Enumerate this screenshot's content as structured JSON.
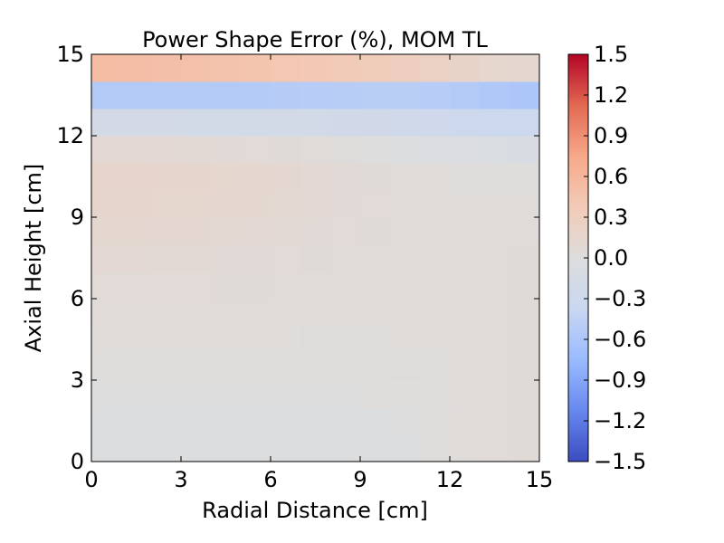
{
  "chart_data": {
    "type": "heatmap",
    "title": "Power Shape Error (%), MOM TL",
    "xlabel": "Radial Distance [cm]",
    "ylabel": "Axial Height [cm]",
    "xlim": [
      0,
      15
    ],
    "ylim": [
      0,
      15
    ],
    "x_ticks": [
      0,
      3,
      6,
      9,
      12,
      15
    ],
    "y_ticks": [
      0,
      3,
      6,
      9,
      12,
      15
    ],
    "x_tick_labels": [
      "0",
      "3",
      "6",
      "9",
      "12",
      "15"
    ],
    "y_tick_labels": [
      "0",
      "3",
      "6",
      "9",
      "12",
      "15"
    ],
    "x_edges": [
      0,
      1,
      2,
      3,
      4,
      5,
      6,
      7,
      8,
      9,
      10,
      11,
      12,
      13,
      14,
      15
    ],
    "y_edges": [
      0,
      1,
      2,
      3,
      4,
      5,
      6,
      7,
      8,
      9,
      10,
      11,
      12,
      13,
      14,
      15
    ],
    "values": [
      [
        -0.01,
        -0.01,
        -0.01,
        -0.01,
        -0.01,
        -0.01,
        -0.02,
        -0.01,
        -0.01,
        -0.01,
        -0.01,
        0.01,
        0.03,
        0.05,
        0.06
      ],
      [
        -0.01,
        -0.01,
        -0.01,
        -0.01,
        -0.01,
        -0.01,
        -0.01,
        -0.01,
        -0.01,
        -0.01,
        0.0,
        0.01,
        0.03,
        0.05,
        0.06
      ],
      [
        0.0,
        0.0,
        0.0,
        0.0,
        0.0,
        0.0,
        0.0,
        0.0,
        0.0,
        0.01,
        0.01,
        0.02,
        0.03,
        0.05,
        0.06
      ],
      [
        0.01,
        0.01,
        0.01,
        0.01,
        0.01,
        0.01,
        0.01,
        0.01,
        0.01,
        0.01,
        0.02,
        0.02,
        0.03,
        0.05,
        0.06
      ],
      [
        0.03,
        0.03,
        0.03,
        0.03,
        0.03,
        0.03,
        0.03,
        0.02,
        0.02,
        0.02,
        0.03,
        0.03,
        0.04,
        0.05,
        0.06
      ],
      [
        0.05,
        0.05,
        0.05,
        0.05,
        0.05,
        0.05,
        0.04,
        0.04,
        0.03,
        0.03,
        0.03,
        0.04,
        0.04,
        0.05,
        0.06
      ],
      [
        0.07,
        0.07,
        0.07,
        0.07,
        0.06,
        0.06,
        0.05,
        0.05,
        0.04,
        0.04,
        0.04,
        0.04,
        0.05,
        0.05,
        0.06
      ],
      [
        0.1,
        0.1,
        0.09,
        0.09,
        0.08,
        0.08,
        0.07,
        0.06,
        0.05,
        0.05,
        0.04,
        0.04,
        0.05,
        0.05,
        0.06
      ],
      [
        0.13,
        0.13,
        0.12,
        0.12,
        0.11,
        0.1,
        0.09,
        0.08,
        0.07,
        0.06,
        0.05,
        0.05,
        0.05,
        0.05,
        0.05
      ],
      [
        0.16,
        0.16,
        0.15,
        0.15,
        0.14,
        0.13,
        0.11,
        0.1,
        0.08,
        0.07,
        0.05,
        0.04,
        0.04,
        0.04,
        0.04
      ],
      [
        0.17,
        0.17,
        0.16,
        0.16,
        0.15,
        0.14,
        0.12,
        0.1,
        0.08,
        0.06,
        0.04,
        0.03,
        0.02,
        0.01,
        0.01
      ],
      [
        0.1,
        0.1,
        0.1,
        0.09,
        0.08,
        0.07,
        0.06,
        0.04,
        0.02,
        0.0,
        -0.02,
        -0.04,
        -0.06,
        -0.08,
        -0.09
      ],
      [
        -0.18,
        -0.18,
        -0.18,
        -0.19,
        -0.19,
        -0.2,
        -0.2,
        -0.21,
        -0.22,
        -0.23,
        -0.25,
        -0.27,
        -0.29,
        -0.31,
        -0.32
      ],
      [
        -0.55,
        -0.55,
        -0.55,
        -0.55,
        -0.55,
        -0.54,
        -0.53,
        -0.52,
        -0.51,
        -0.5,
        -0.5,
        -0.52,
        -0.55,
        -0.58,
        -0.6
      ],
      [
        0.53,
        0.52,
        0.5,
        0.48,
        0.46,
        0.44,
        0.42,
        0.4,
        0.37,
        0.34,
        0.3,
        0.25,
        0.2,
        0.15,
        0.13
      ]
    ],
    "colorbar": {
      "min": -1.5,
      "max": 1.5,
      "ticks": [
        1.5,
        1.2,
        0.9,
        0.6,
        0.3,
        0.0,
        -0.3,
        -0.6,
        -0.9,
        -1.2,
        -1.5
      ],
      "tick_labels": [
        "1.5",
        "1.2",
        "0.9",
        "0.6",
        "0.3",
        "0.0",
        "−0.3",
        "−0.6",
        "−0.9",
        "−1.2",
        "−1.5"
      ],
      "colormap": "coolwarm",
      "colormap_stops": [
        "#3b4cc0",
        "#6788ee",
        "#9abbff",
        "#c9d7f0",
        "#dddddd",
        "#f2cbb7",
        "#f7a889",
        "#e26952",
        "#b40426"
      ]
    },
    "grid": false,
    "legend": "none"
  }
}
